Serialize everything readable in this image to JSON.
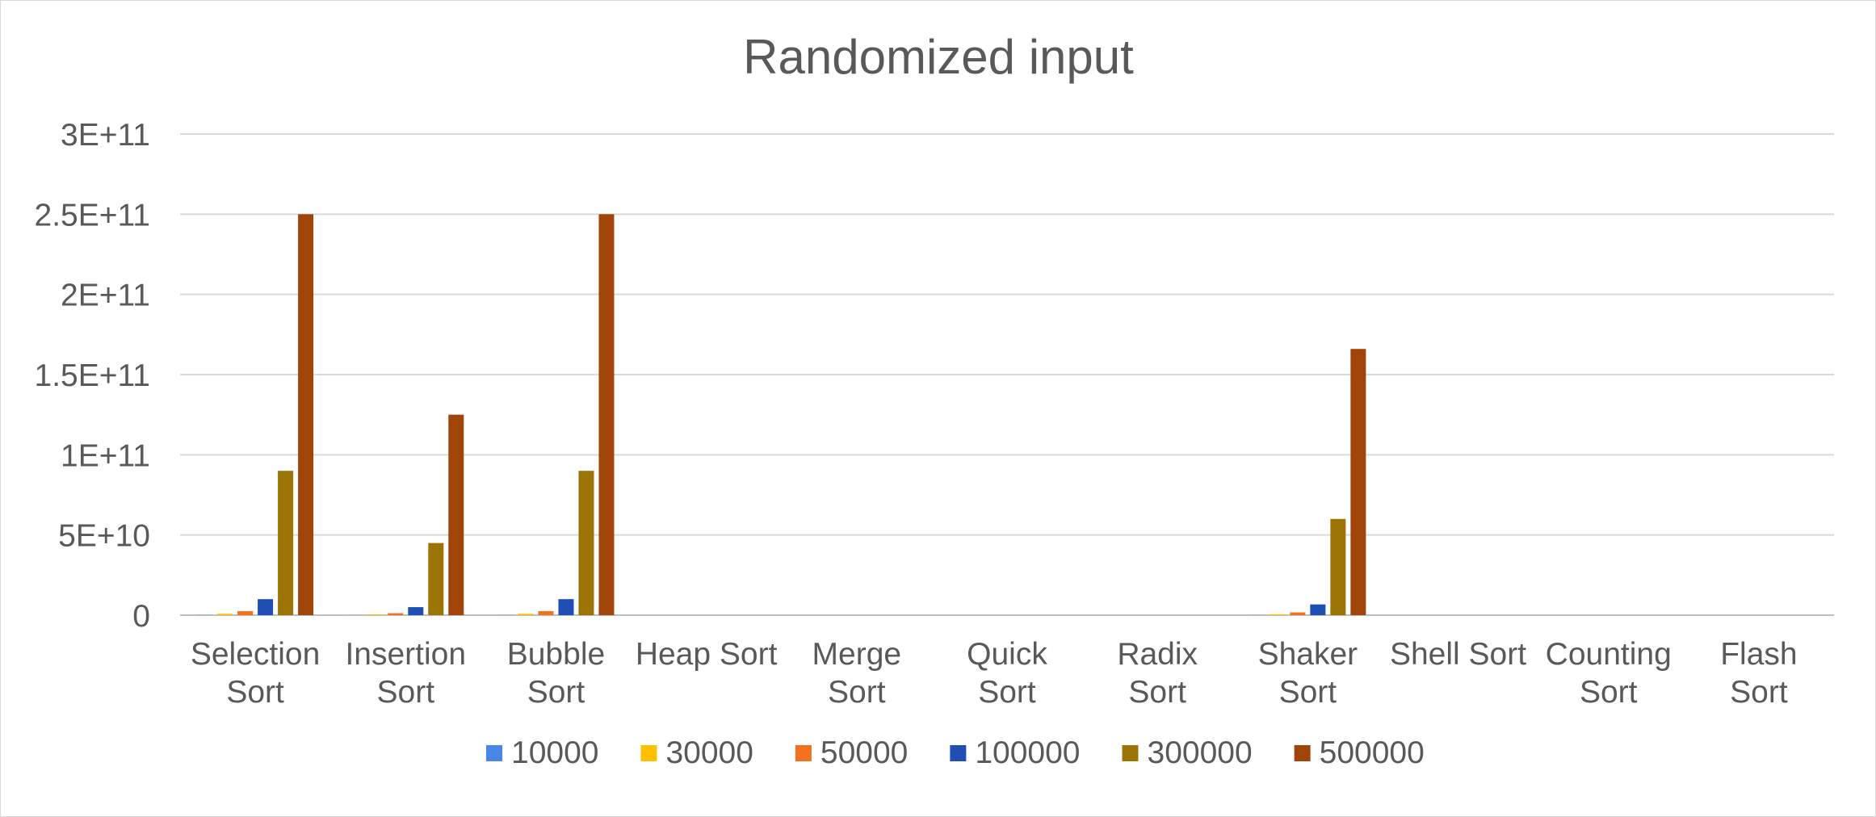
{
  "chart_data": {
    "type": "bar",
    "title": "Randomized input",
    "xlabel": "",
    "ylabel": "",
    "ylim": [
      0,
      300000000000
    ],
    "yticks": [
      {
        "value": 0,
        "label": "0"
      },
      {
        "value": 50000000000,
        "label": "5E+10"
      },
      {
        "value": 100000000000,
        "label": "1E+11"
      },
      {
        "value": 150000000000,
        "label": "1.5E+11"
      },
      {
        "value": 200000000000,
        "label": "2E+11"
      },
      {
        "value": 250000000000,
        "label": "2.5E+11"
      },
      {
        "value": 300000000000,
        "label": "3E+11"
      }
    ],
    "grid": true,
    "legend_position": "bottom",
    "categories": [
      [
        "Selection",
        "Sort"
      ],
      [
        "Insertion",
        "Sort"
      ],
      [
        "Bubble",
        "Sort"
      ],
      [
        "Heap Sort"
      ],
      [
        "Merge",
        "Sort"
      ],
      [
        "Quick",
        "Sort"
      ],
      [
        "Radix",
        "Sort"
      ],
      [
        "Shaker",
        "Sort"
      ],
      [
        "Shell Sort"
      ],
      [
        "Counting",
        "Sort"
      ],
      [
        "Flash",
        "Sort"
      ]
    ],
    "series": [
      {
        "name": "10000",
        "color": "#4a86e8",
        "values": [
          100000000,
          50000000,
          100000000,
          0,
          0,
          0,
          0,
          70000000,
          0,
          0,
          0
        ]
      },
      {
        "name": "30000",
        "color": "#ffc000",
        "values": [
          900000000,
          450000000,
          900000000,
          0,
          0,
          0,
          0,
          600000000,
          0,
          0,
          0
        ]
      },
      {
        "name": "50000",
        "color": "#f4711f",
        "values": [
          2500000000,
          1250000000,
          2500000000,
          0,
          0,
          0,
          0,
          1700000000,
          0,
          0,
          0
        ]
      },
      {
        "name": "100000",
        "color": "#1f4fb4",
        "values": [
          10000000000,
          5000000000,
          10000000000,
          0,
          0,
          0,
          0,
          6700000000,
          0,
          0,
          0
        ]
      },
      {
        "name": "300000",
        "color": "#9c7406",
        "values": [
          90000000000,
          45000000000,
          90000000000,
          0,
          0,
          0,
          0,
          60000000000,
          0,
          0,
          0
        ]
      },
      {
        "name": "500000",
        "color": "#a1440a",
        "values": [
          250000000000,
          125000000000,
          250000000000,
          0,
          0,
          0,
          0,
          166000000000,
          0,
          0,
          0
        ]
      }
    ],
    "colors": {
      "gridline": "#d9d9d9",
      "axis_line": "#bfbfbf",
      "text": "#595959"
    }
  }
}
